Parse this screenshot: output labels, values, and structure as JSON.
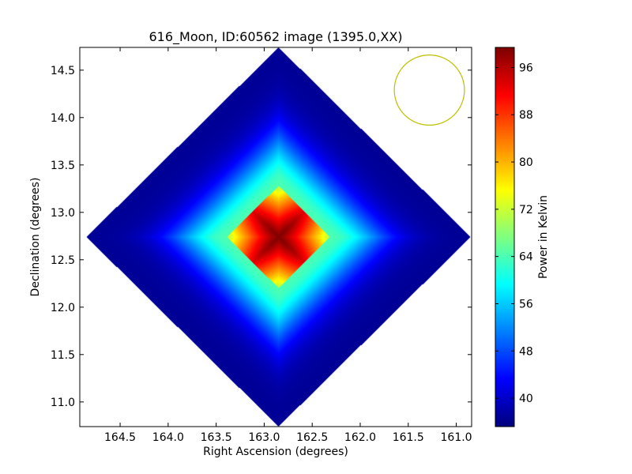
{
  "chart_data": {
    "type": "heatmap",
    "title": "616_Moon, ID:60562 image (1395.0,XX)",
    "xlabel": "Right Ascension (degrees)",
    "ylabel": "Declination (degrees)",
    "xlim": [
      164.92,
      160.84
    ],
    "ylim": [
      10.74,
      14.74
    ],
    "x_ticks": [
      164.5,
      164.0,
      163.5,
      163.0,
      162.5,
      162.0,
      161.5,
      161.0
    ],
    "x_tick_labels": [
      "164.5",
      "164.0",
      "163.5",
      "163.0",
      "162.5",
      "162.0",
      "161.5",
      "161.0"
    ],
    "y_ticks": [
      11.0,
      11.5,
      12.0,
      12.5,
      13.0,
      13.5,
      14.0,
      14.5
    ],
    "y_tick_labels": [
      "11.0",
      "11.5",
      "12.0",
      "12.5",
      "13.0",
      "13.5",
      "14.0",
      "14.5"
    ],
    "colorbar": {
      "label": "Power in Kelvin",
      "colormap": "jet",
      "min": 35.2,
      "max": 99.4,
      "ticks": [
        40,
        48,
        56,
        64,
        72,
        80,
        88,
        96
      ],
      "tick_labels": [
        "40",
        "48",
        "56",
        "64",
        "72",
        "80",
        "88",
        "96"
      ]
    },
    "footprint": {
      "center_ra": 162.85,
      "center_dec": 12.74,
      "half_extent_deg": 2.0,
      "background_value": 36.5
    },
    "peak": {
      "ra": 162.85,
      "dec": 12.74,
      "value": 99.4,
      "plateau_half_width_deg": 0.38
    },
    "beam_circle": {
      "center_ra": 161.28,
      "center_dec": 14.29,
      "radius_deg": 0.37,
      "color": "#bfbf00"
    },
    "colors": {
      "background": "#ffffff",
      "axes_frame": "#000000",
      "outside_footprint": "#ffffff"
    }
  }
}
